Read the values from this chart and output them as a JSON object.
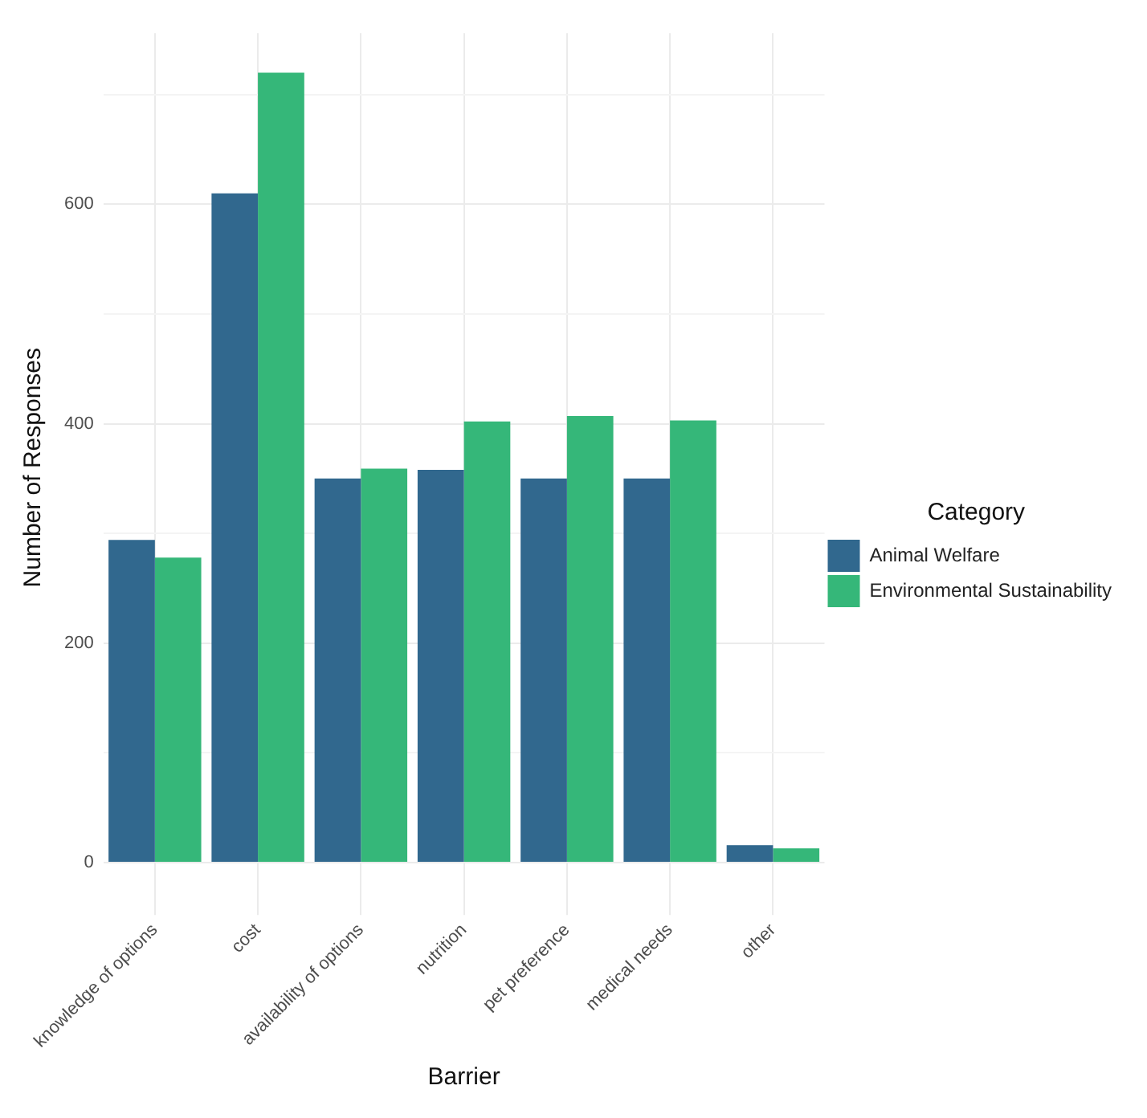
{
  "chart_data": {
    "type": "bar",
    "xlabel": "Barrier",
    "ylabel": "Number of Responses",
    "legend_title": "Category",
    "legend": "right",
    "grid": true,
    "categories": [
      "knowledge of options",
      "cost",
      "availability of options",
      "nutrition",
      "pet preference",
      "medical needs",
      "other"
    ],
    "series": [
      {
        "name": "Animal Welfare",
        "color": "#31688e",
        "values": [
          294,
          610,
          350,
          358,
          350,
          350,
          16
        ]
      },
      {
        "name": "Environmental Sustainability",
        "color": "#35b779",
        "values": [
          278,
          720,
          359,
          402,
          407,
          403,
          13
        ]
      }
    ],
    "ylim": [
      -36,
      756
    ],
    "yticks": [
      0,
      {
        "value": 100,
        "label": null
      },
      200,
      {
        "value": 300,
        "label": null
      },
      400,
      {
        "value": 500,
        "label": null
      },
      600,
      {
        "value": 700,
        "label": null
      }
    ]
  }
}
